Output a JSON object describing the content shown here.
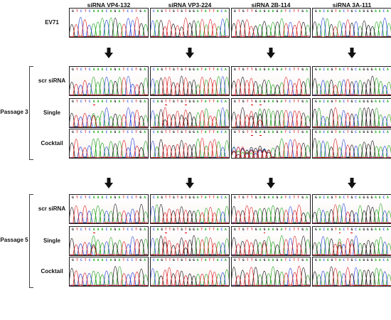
{
  "columns": [
    "siRNA VP4-132",
    "siRNA VP3-224",
    "siRNA 2B-114",
    "siRNA 3A-111"
  ],
  "passages": [
    "Passage 3",
    "Passage 5"
  ],
  "rows": [
    {
      "label": "EV71",
      "passage": null,
      "mutations": [
        [],
        [],
        [],
        []
      ]
    },
    {
      "label": "scr siRNA",
      "passage": 0,
      "mutations": [
        [],
        [],
        [],
        []
      ]
    },
    {
      "label": "Single",
      "passage": 0,
      "mutations": [
        [
          5
        ],
        [
          3,
          8
        ],
        [
          4,
          6
        ],
        []
      ]
    },
    {
      "label": "Cocktail",
      "passage": 0,
      "mutations": [
        [],
        [],
        [
          4,
          6
        ],
        []
      ]
    },
    {
      "label": "scr siRNA",
      "passage": 1,
      "mutations": [
        [],
        [],
        [],
        []
      ]
    },
    {
      "label": "Single",
      "passage": 1,
      "mutations": [
        [
          5
        ],
        [
          3,
          8
        ],
        [
          7
        ],
        [
          6,
          9
        ]
      ]
    },
    {
      "label": "Cocktail",
      "passage": 1,
      "mutations": [
        [],
        [],
        [],
        []
      ]
    }
  ],
  "sequences": [
    "GTCTCAAACAGATCCTGA",
    "CAGTTGTGTGGATATTACA",
    "GTGTTGAGAAGATCTTGA",
    "GACAGTACTGCAGGGAACA"
  ],
  "colors": {
    "A": "#1aa61a",
    "C": "#2244dd",
    "G": "#111111",
    "T": "#dd2222",
    "mutation_mark": "#dd0000",
    "arrow": "#111111"
  }
}
